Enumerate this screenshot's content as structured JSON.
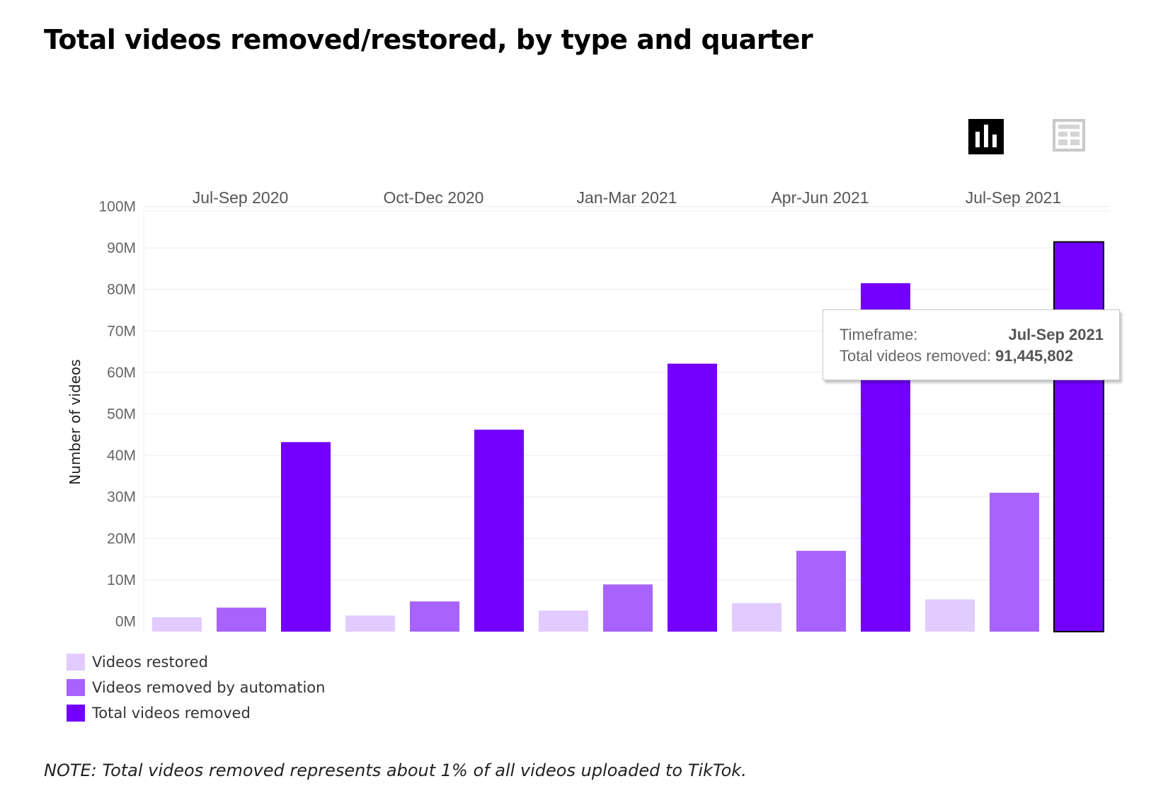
{
  "title": "Total videos removed/restored, by type and quarter",
  "view_toggle": {
    "chart_icon": "bar-chart-icon",
    "table_icon": "table-icon"
  },
  "tooltip": {
    "timeframe_label": "Timeframe:",
    "timeframe_value": "Jul-Sep 2021",
    "metric_label": "Total videos removed:",
    "metric_value": "91,445,802"
  },
  "legend": [
    {
      "label": "Videos restored",
      "color": "#e2cbff"
    },
    {
      "label": "Videos removed by automation",
      "color": "#a763fb"
    },
    {
      "label": "Total videos removed",
      "color": "#7300ff"
    }
  ],
  "note": "NOTE: Total videos removed represents about 1% of all videos uploaded to TikTok.",
  "chart_data": {
    "type": "bar",
    "categories": [
      "Jul-Sep 2020",
      "Oct-Dec 2020",
      "Jan-Mar 2021",
      "Apr-Jun 2021",
      "Jul-Sep 2021"
    ],
    "series": [
      {
        "name": "Videos restored",
        "color": "#e2cbff",
        "values": [
          1.0,
          1.4,
          2.6,
          4.4,
          5.3
        ]
      },
      {
        "name": "Videos removed by automation",
        "color": "#a763fb",
        "values": [
          3.3,
          4.8,
          8.9,
          17.0,
          31.0
        ]
      },
      {
        "name": "Total videos removed",
        "color": "#7300ff",
        "values": [
          43.2,
          46.2,
          62.1,
          81.5,
          91.445802
        ]
      }
    ],
    "ylabel": "Number of videos",
    "yticks": [
      "0M",
      "10M",
      "20M",
      "30M",
      "40M",
      "50M",
      "60M",
      "70M",
      "80M",
      "90M",
      "100M"
    ],
    "ylim": [
      -2.3,
      100
    ],
    "grid": true,
    "legend_position": "bottom-left",
    "highlighted": {
      "category": "Jul-Sep 2021",
      "series": "Total videos removed"
    }
  }
}
